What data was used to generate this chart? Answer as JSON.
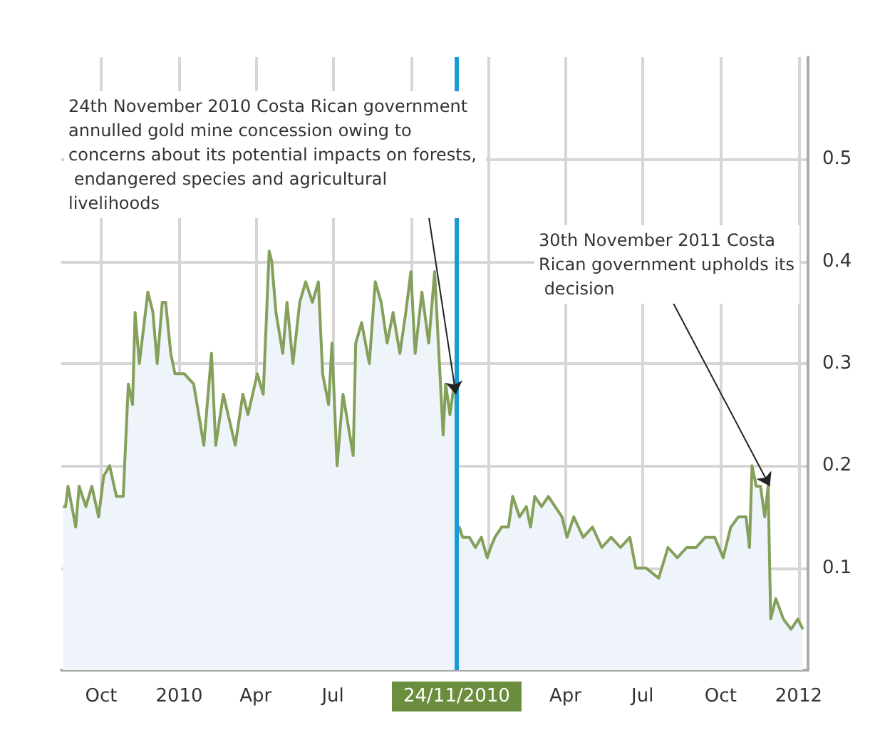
{
  "chart_data": {
    "type": "area",
    "x": [
      "2009-08-17",
      "2009-08-20",
      "2009-08-23",
      "2009-09-01",
      "2009-09-05",
      "2009-09-13",
      "2009-09-20",
      "2009-09-28",
      "2009-10-04",
      "2009-10-11",
      "2009-10-19",
      "2009-10-27",
      "2009-11-02",
      "2009-11-07",
      "2009-11-10",
      "2009-11-15",
      "2009-11-25",
      "2009-12-01",
      "2009-12-06",
      "2009-12-12",
      "2009-12-16",
      "2009-12-22",
      "2009-12-27",
      "2010-01-07",
      "2010-01-18",
      "2010-01-30",
      "2010-02-08",
      "2010-02-13",
      "2010-02-22",
      "2010-03-08",
      "2010-03-17",
      "2010-03-23",
      "2010-04-03",
      "2010-04-10",
      "2010-04-17",
      "2010-04-20",
      "2010-04-25",
      "2010-05-03",
      "2010-05-08",
      "2010-05-15",
      "2010-05-23",
      "2010-05-30",
      "2010-06-07",
      "2010-06-14",
      "2010-06-19",
      "2010-06-26",
      "2010-06-30",
      "2010-07-06",
      "2010-07-13",
      "2010-07-25",
      "2010-07-28",
      "2010-08-04",
      "2010-08-13",
      "2010-08-20",
      "2010-08-27",
      "2010-09-03",
      "2010-09-10",
      "2010-09-18",
      "2010-09-25",
      "2010-10-01",
      "2010-10-06",
      "2010-10-14",
      "2010-10-22",
      "2010-10-29",
      "2010-11-03",
      "2010-11-08",
      "2010-11-11",
      "2010-11-16",
      "2010-11-21",
      "2010-11-23",
      "2010-11-24",
      "2010-11-27",
      "2010-12-01",
      "2010-12-09",
      "2010-12-16",
      "2010-12-23",
      "2010-12-30",
      "2011-01-03",
      "2011-01-08",
      "2011-01-16",
      "2011-01-24",
      "2011-01-29",
      "2011-02-06",
      "2011-02-14",
      "2011-02-19",
      "2011-02-24",
      "2011-03-04",
      "2011-03-12",
      "2011-03-20",
      "2011-03-28",
      "2011-04-03",
      "2011-04-11",
      "2011-04-22",
      "2011-05-03",
      "2011-05-14",
      "2011-05-25",
      "2011-06-05",
      "2011-06-16",
      "2011-06-23",
      "2011-07-05",
      "2011-07-20",
      "2011-07-31",
      "2011-08-11",
      "2011-08-22",
      "2011-09-02",
      "2011-09-13",
      "2011-09-24",
      "2011-10-04",
      "2011-10-13",
      "2011-10-22",
      "2011-10-31",
      "2011-11-04",
      "2011-11-07",
      "2011-11-12",
      "2011-11-17",
      "2011-11-22",
      "2011-11-26",
      "2011-11-29",
      "2011-12-05",
      "2011-12-14",
      "2011-12-23",
      "2011-12-31",
      "2012-01-06"
    ],
    "series": [
      {
        "color": "#84a05a",
        "values": [
          0.16,
          0.16,
          0.18,
          0.14,
          0.18,
          0.16,
          0.18,
          0.15,
          0.19,
          0.2,
          0.17,
          0.17,
          0.28,
          0.26,
          0.35,
          0.3,
          0.37,
          0.35,
          0.3,
          0.36,
          0.36,
          0.31,
          0.29,
          0.29,
          0.28,
          0.22,
          0.31,
          0.22,
          0.27,
          0.22,
          0.27,
          0.25,
          0.29,
          0.27,
          0.41,
          0.4,
          0.35,
          0.31,
          0.36,
          0.3,
          0.36,
          0.38,
          0.36,
          0.38,
          0.29,
          0.26,
          0.32,
          0.2,
          0.27,
          0.21,
          0.32,
          0.34,
          0.3,
          0.38,
          0.36,
          0.32,
          0.35,
          0.31,
          0.35,
          0.39,
          0.31,
          0.37,
          0.32,
          0.39,
          0.31,
          0.23,
          0.28,
          0.25,
          0.28,
          0.27,
          0.13,
          0.14,
          0.13,
          0.13,
          0.12,
          0.13,
          0.11,
          0.12,
          0.13,
          0.14,
          0.14,
          0.17,
          0.15,
          0.16,
          0.14,
          0.17,
          0.16,
          0.17,
          0.16,
          0.15,
          0.13,
          0.15,
          0.13,
          0.14,
          0.12,
          0.13,
          0.12,
          0.13,
          0.1,
          0.1,
          0.09,
          0.12,
          0.11,
          0.12,
          0.12,
          0.13,
          0.13,
          0.11,
          0.14,
          0.15,
          0.15,
          0.12,
          0.2,
          0.18,
          0.18,
          0.15,
          0.18,
          0.05,
          0.07,
          0.05,
          0.04,
          0.05,
          0.04
        ]
      }
    ],
    "xlim": [
      "2009-08-15",
      "2012-01-12"
    ],
    "xticks": [
      {
        "value": "2009-10-01",
        "label": "Oct"
      },
      {
        "value": "2010-01-01",
        "label": "2010"
      },
      {
        "value": "2010-04-01",
        "label": "Apr"
      },
      {
        "value": "2010-07-01",
        "label": "Jul"
      },
      {
        "value": "2010-10-01",
        "label": null
      },
      {
        "value": "2011-01-01",
        "label": null
      },
      {
        "value": "2011-04-01",
        "label": "Apr"
      },
      {
        "value": "2011-07-01",
        "label": "Jul"
      },
      {
        "value": "2011-10-01",
        "label": "Oct"
      },
      {
        "value": "2012-01-01",
        "label": "2012"
      }
    ],
    "ylim": [
      0,
      0.6
    ],
    "yticks": [
      0.1,
      0.2,
      0.3,
      0.4,
      0.5
    ],
    "grid": true,
    "ref_lines": [
      {
        "axis": "x",
        "value": "2010-11-24",
        "label": "24/11/2010",
        "color": "#1a9ad6"
      }
    ],
    "annotations": [
      {
        "text": "24th November 2010 Costa Rican government annulled gold mine concession owing to concerns about its potential impacts on forests, endangered species and agricultural livelihoods",
        "x": "2010-11-23",
        "y": 0.27
      },
      {
        "text": "30th November 2011 Costa Rican government upholds its decision",
        "x": "2011-11-28",
        "y": 0.18
      }
    ]
  }
}
